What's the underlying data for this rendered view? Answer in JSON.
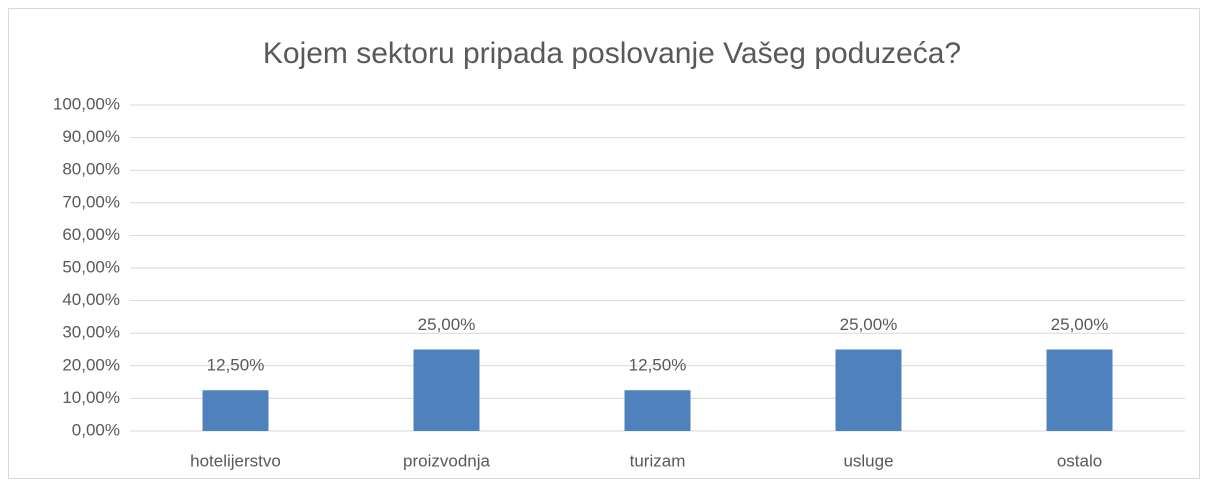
{
  "chart_data": {
    "type": "bar",
    "title": "Kojem sektoru pripada poslovanje Vašeg poduzeća?",
    "categories": [
      "hotelijerstvo",
      "proizvodnja",
      "turizam",
      "usluge",
      "ostalo"
    ],
    "values": [
      12.5,
      25,
      12.5,
      25,
      25
    ],
    "value_labels": [
      "12,50%",
      "25,00%",
      "12,50%",
      "25,00%",
      "25,00%"
    ],
    "color": "#4f81bd",
    "ylim": [
      0,
      100
    ],
    "yticks": [
      {
        "value": 0,
        "label": "0,00%"
      },
      {
        "value": 10,
        "label": "10,00%"
      },
      {
        "value": 20,
        "label": "20,00%"
      },
      {
        "value": 30,
        "label": "30,00%"
      },
      {
        "value": 40,
        "label": "40,00%"
      },
      {
        "value": 50,
        "label": "50,00%"
      },
      {
        "value": 60,
        "label": "60,00%"
      },
      {
        "value": 70,
        "label": "70,00%"
      },
      {
        "value": 80,
        "label": "80,00%"
      },
      {
        "value": 90,
        "label": "90,00%"
      },
      {
        "value": 100,
        "label": "100,00%"
      }
    ],
    "grid": true
  }
}
